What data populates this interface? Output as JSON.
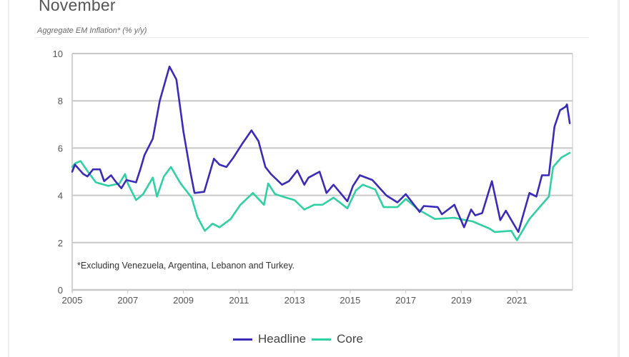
{
  "header": {
    "title": "November",
    "subtitle": "Aggregate EM Inflation* (% y/y)"
  },
  "colors": {
    "headline": "#3a2bb8",
    "core": "#2fd1a4",
    "grid": "#c8c8c8",
    "axis_text": "#555555"
  },
  "chart_data": {
    "type": "line",
    "title": "Aggregate EM Inflation* (% y/y)",
    "xlabel": "",
    "ylabel": "",
    "xlim": [
      2005,
      2023
    ],
    "ylim": [
      0,
      10
    ],
    "grid": true,
    "legend_position": "bottom",
    "x_ticks": [
      "2005",
      "2007",
      "2009",
      "2011",
      "2013",
      "2015",
      "2017",
      "2019",
      "2021"
    ],
    "x_tick_values": [
      2005,
      2007,
      2009,
      2011,
      2013,
      2015,
      2017,
      2019,
      2021
    ],
    "y_ticks": [
      "0",
      "2",
      "4",
      "6",
      "8",
      "10"
    ],
    "y_tick_values": [
      0,
      2,
      4,
      6,
      8,
      10
    ],
    "annotation": "*Excluding Venezuela, Argentina, Lebanon and Turkey.",
    "series": [
      {
        "name": "Headline",
        "color": "#3a2bb8",
        "points": [
          [
            2005.0,
            5.0
          ],
          [
            2005.1,
            5.3
          ],
          [
            2005.25,
            5.1
          ],
          [
            2005.4,
            4.9
          ],
          [
            2005.55,
            4.8
          ],
          [
            2005.75,
            5.1
          ],
          [
            2006.0,
            5.1
          ],
          [
            2006.15,
            4.6
          ],
          [
            2006.4,
            4.85
          ],
          [
            2006.55,
            4.6
          ],
          [
            2006.77,
            4.3
          ],
          [
            2006.95,
            4.65
          ],
          [
            2007.3,
            4.55
          ],
          [
            2007.45,
            5.1
          ],
          [
            2007.6,
            5.7
          ],
          [
            2007.9,
            6.4
          ],
          [
            2008.15,
            8.0
          ],
          [
            2008.5,
            9.45
          ],
          [
            2008.75,
            8.9
          ],
          [
            2009.0,
            6.7
          ],
          [
            2009.25,
            5.0
          ],
          [
            2009.4,
            4.1
          ],
          [
            2009.75,
            4.15
          ],
          [
            2010.1,
            5.55
          ],
          [
            2010.3,
            5.3
          ],
          [
            2010.55,
            5.2
          ],
          [
            2010.8,
            5.6
          ],
          [
            2011.1,
            6.15
          ],
          [
            2011.45,
            6.75
          ],
          [
            2011.7,
            6.3
          ],
          [
            2011.95,
            5.2
          ],
          [
            2012.15,
            4.9
          ],
          [
            2012.55,
            4.45
          ],
          [
            2012.8,
            4.6
          ],
          [
            2013.1,
            5.05
          ],
          [
            2013.35,
            4.45
          ],
          [
            2013.5,
            4.75
          ],
          [
            2013.9,
            5.0
          ],
          [
            2014.15,
            4.1
          ],
          [
            2014.4,
            4.45
          ],
          [
            2014.9,
            3.75
          ],
          [
            2015.1,
            4.4
          ],
          [
            2015.35,
            4.85
          ],
          [
            2015.8,
            4.65
          ],
          [
            2016.3,
            4.0
          ],
          [
            2016.7,
            3.7
          ],
          [
            2017.0,
            4.05
          ],
          [
            2017.5,
            3.3
          ],
          [
            2017.65,
            3.55
          ],
          [
            2018.15,
            3.5
          ],
          [
            2018.3,
            3.2
          ],
          [
            2018.75,
            3.6
          ],
          [
            2019.1,
            2.65
          ],
          [
            2019.35,
            3.4
          ],
          [
            2019.5,
            3.15
          ],
          [
            2019.75,
            3.25
          ],
          [
            2020.1,
            4.6
          ],
          [
            2020.4,
            2.95
          ],
          [
            2020.6,
            3.35
          ],
          [
            2021.05,
            2.45
          ],
          [
            2021.45,
            4.1
          ],
          [
            2021.7,
            3.95
          ],
          [
            2021.9,
            4.85
          ],
          [
            2022.15,
            4.85
          ],
          [
            2022.35,
            6.9
          ],
          [
            2022.55,
            7.6
          ],
          [
            2022.75,
            7.75
          ],
          [
            2022.8,
            7.85
          ],
          [
            2022.9,
            7.05
          ]
        ]
      },
      {
        "name": "Core",
        "color": "#2fd1a4",
        "points": [
          [
            2005.0,
            5.2
          ],
          [
            2005.1,
            5.35
          ],
          [
            2005.3,
            5.45
          ],
          [
            2005.6,
            4.95
          ],
          [
            2005.85,
            4.55
          ],
          [
            2006.3,
            4.4
          ],
          [
            2006.7,
            4.5
          ],
          [
            2006.9,
            4.9
          ],
          [
            2007.0,
            4.5
          ],
          [
            2007.3,
            3.8
          ],
          [
            2007.55,
            4.05
          ],
          [
            2007.9,
            4.75
          ],
          [
            2008.05,
            3.95
          ],
          [
            2008.3,
            4.8
          ],
          [
            2008.55,
            5.2
          ],
          [
            2008.9,
            4.5
          ],
          [
            2009.3,
            3.9
          ],
          [
            2009.5,
            3.1
          ],
          [
            2009.77,
            2.5
          ],
          [
            2010.05,
            2.8
          ],
          [
            2010.3,
            2.65
          ],
          [
            2010.7,
            3.0
          ],
          [
            2011.05,
            3.6
          ],
          [
            2011.5,
            4.1
          ],
          [
            2011.9,
            3.6
          ],
          [
            2012.05,
            4.5
          ],
          [
            2012.3,
            4.05
          ],
          [
            2012.7,
            3.9
          ],
          [
            2013.0,
            3.8
          ],
          [
            2013.35,
            3.4
          ],
          [
            2013.7,
            3.6
          ],
          [
            2014.0,
            3.6
          ],
          [
            2014.4,
            3.9
          ],
          [
            2014.9,
            3.45
          ],
          [
            2015.2,
            4.2
          ],
          [
            2015.45,
            4.45
          ],
          [
            2015.9,
            4.25
          ],
          [
            2016.2,
            3.5
          ],
          [
            2016.7,
            3.5
          ],
          [
            2017.0,
            3.85
          ],
          [
            2017.45,
            3.4
          ],
          [
            2018.05,
            3.0
          ],
          [
            2018.75,
            3.05
          ],
          [
            2019.15,
            2.95
          ],
          [
            2019.4,
            2.9
          ],
          [
            2020.0,
            2.6
          ],
          [
            2020.2,
            2.45
          ],
          [
            2020.8,
            2.5
          ],
          [
            2021.0,
            2.1
          ],
          [
            2021.45,
            3.0
          ],
          [
            2021.85,
            3.55
          ],
          [
            2022.15,
            3.95
          ],
          [
            2022.3,
            5.2
          ],
          [
            2022.6,
            5.6
          ],
          [
            2022.9,
            5.8
          ]
        ]
      }
    ]
  },
  "legend": {
    "items": [
      {
        "label": "Headline",
        "color": "#3a2bb8"
      },
      {
        "label": "Core",
        "color": "#2fd1a4"
      }
    ]
  }
}
